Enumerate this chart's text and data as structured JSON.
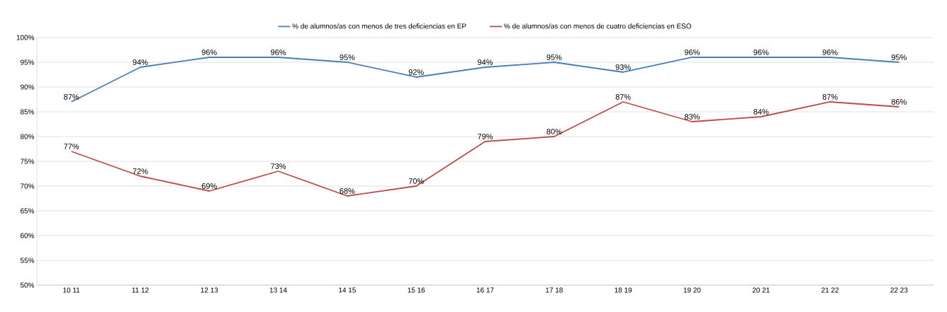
{
  "chart_data": {
    "type": "line",
    "categories": [
      "10 11",
      "11 12",
      "12 13",
      "13 14",
      "14 15",
      "15 16",
      "16 17",
      "17 18",
      "18 19",
      "19 20",
      "20 21",
      "21 22",
      "22 23"
    ],
    "series": [
      {
        "name": "% de alumnos/as con menos de tres deficiencias en EP",
        "color": "#4a7ebb",
        "values": [
          87,
          94,
          96,
          96,
          95,
          92,
          94,
          95,
          93,
          96,
          96,
          96,
          95
        ],
        "value_labels": [
          "87%",
          "94%",
          "96%",
          "96%",
          "95%",
          "92%",
          "94%",
          "95%",
          "93%",
          "96%",
          "96%",
          "96%",
          "95%"
        ]
      },
      {
        "name": "% de alumnos/as con menos de cuatro deficiencias en ESO",
        "color": "#be4b48",
        "values": [
          77,
          72,
          69,
          73,
          68,
          70,
          79,
          80,
          87,
          83,
          84,
          87,
          86
        ],
        "value_labels": [
          "77%",
          "72%",
          "69%",
          "73%",
          "68%",
          "70%",
          "79%",
          "80%",
          "87%",
          "83%",
          "84%",
          "87%",
          "86%"
        ]
      }
    ],
    "ylim": [
      50,
      100
    ],
    "yticks": [
      {
        "value": 50,
        "label": "50%"
      },
      {
        "value": 55,
        "label": "55%"
      },
      {
        "value": 60,
        "label": "60%"
      },
      {
        "value": 65,
        "label": "65%"
      },
      {
        "value": 70,
        "label": "70%"
      },
      {
        "value": 75,
        "label": "75%"
      },
      {
        "value": 80,
        "label": "80%"
      },
      {
        "value": 85,
        "label": "85%"
      },
      {
        "value": 90,
        "label": "90%"
      },
      {
        "value": 95,
        "label": "95%"
      },
      {
        "value": 100,
        "label": "100%"
      }
    ],
    "grid": "y",
    "legend": "top",
    "marker": "none",
    "line_style": "solid"
  }
}
